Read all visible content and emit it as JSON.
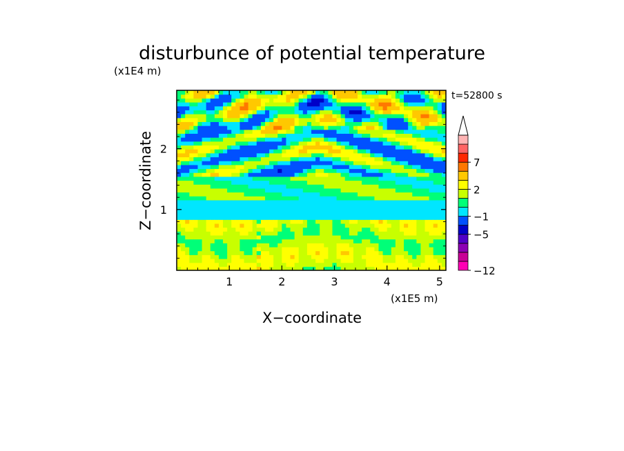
{
  "chart_data": {
    "type": "heatmap",
    "title": "disturbunce of potential temperature",
    "time_label": "t=52800 s",
    "xlabel": "X−coordinate",
    "ylabel": "Z−coordinate",
    "x_scale_label": "(x1E5 m)",
    "y_scale_label": "(x1E4 m)",
    "xlim": [
      0,
      5.12
    ],
    "ylim": [
      0,
      2.96
    ],
    "x_ticks": [
      1,
      2,
      3,
      4,
      5
    ],
    "x_tick_labels": [
      "1",
      "2",
      "3",
      "4",
      "5"
    ],
    "y_ticks": [
      1,
      2
    ],
    "y_tick_labels": [
      "1",
      "2"
    ],
    "colorbar": {
      "levels": [
        -12,
        -11,
        -9,
        -7,
        -5,
        -3,
        -1,
        0,
        1,
        2,
        3,
        5,
        7,
        9,
        11
      ],
      "colors": [
        "#ff00b4",
        "#c80096",
        "#8c00b4",
        "#5000c8",
        "#0000c8",
        "#0050ff",
        "#00e6ff",
        "#00ff78",
        "#c8ff00",
        "#ffff00",
        "#ffc800",
        "#ff7800",
        "#ff2800",
        "#ff6464",
        "#ffb4b4"
      ],
      "extend_max_color": "#ffffff",
      "tick_values": [
        -12,
        -5,
        -1,
        2,
        7
      ],
      "tick_labels": [
        "−12",
        "−5",
        "−1",
        "2",
        "7"
      ]
    },
    "field_description_bands": [
      {
        "z_range": [
          0.0,
          0.85
        ],
        "level": "positive small (yellow/green)"
      },
      {
        "z_range": [
          0.85,
          1.15
        ],
        "level": "negative small (cyan)"
      },
      {
        "z_range": [
          1.15,
          1.55
        ],
        "level": "near zero (green)"
      },
      {
        "z_range": [
          1.55,
          2.96
        ],
        "level": "alternating wave pattern (yellow/orange/red with blue/cyan)"
      }
    ]
  }
}
